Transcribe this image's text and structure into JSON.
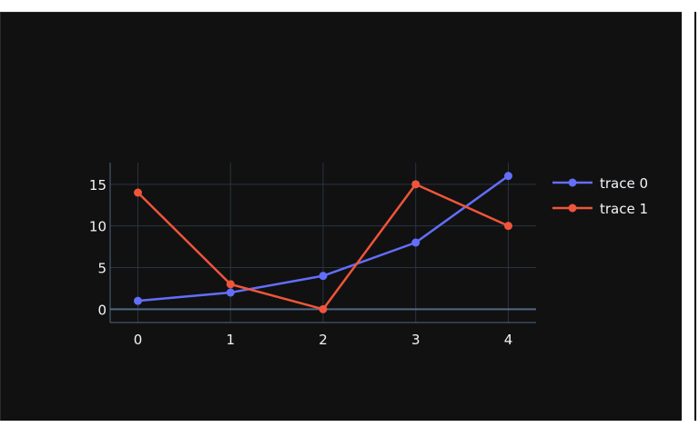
{
  "chart_data": {
    "type": "line",
    "x": [
      0,
      1,
      2,
      3,
      4
    ],
    "xlim": [
      -0.3,
      4.3
    ],
    "ylim": [
      -1.6,
      17.6
    ],
    "x_ticks": [
      "0",
      "1",
      "2",
      "3",
      "4"
    ],
    "y_ticks": [
      {
        "value": 0,
        "label": "0"
      },
      {
        "value": 5,
        "label": "5"
      },
      {
        "value": 10,
        "label": "10"
      },
      {
        "value": 15,
        "label": "15"
      }
    ],
    "grid": true,
    "legend_position": "right",
    "series": [
      {
        "name": "trace 0",
        "values": [
          1,
          2,
          4,
          8,
          16
        ],
        "color": "#636efa"
      },
      {
        "name": "trace 1",
        "values": [
          14,
          3,
          0,
          15,
          10
        ],
        "color": "#ef553b"
      }
    ],
    "title": "",
    "xlabel": "",
    "ylabel": ""
  },
  "theme": {
    "background": "#111111",
    "grid_color": "#283442",
    "axis_line_color": "#506784",
    "text_color": "#f2f5fa"
  }
}
